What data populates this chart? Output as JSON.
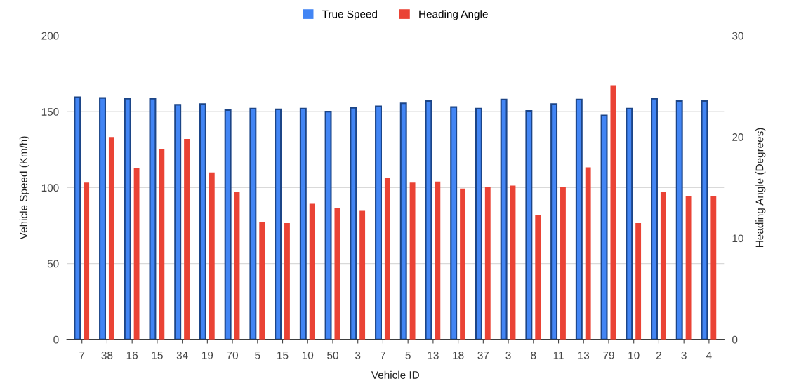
{
  "chart_data": {
    "type": "bar",
    "xlabel": "Vehicle ID",
    "ylabel": "Vehicle Speed (Km/h)",
    "y2label": "Heading Angle (Degrees)",
    "categories": [
      "7",
      "38",
      "16",
      "15",
      "34",
      "19",
      "70",
      "5",
      "15",
      "10",
      "50",
      "3",
      "7",
      "5",
      "13",
      "18",
      "37",
      "3",
      "8",
      "11",
      "13",
      "79",
      "10",
      "2",
      "3",
      "4"
    ],
    "series": [
      {
        "name": "True Speed",
        "color": "#4285f4",
        "values": [
          159.5,
          159,
          158.5,
          158.5,
          154.5,
          155,
          151,
          152,
          151.5,
          152,
          150,
          152.5,
          153.5,
          155.5,
          157,
          153,
          152,
          158,
          150.5,
          155,
          158,
          147.5,
          152,
          158.5,
          157,
          157
        ]
      },
      {
        "name": "Heading Angle",
        "color": "#ea4335",
        "axis": "y2",
        "values": [
          15.5,
          20.0,
          16.9,
          18.8,
          19.8,
          16.5,
          14.6,
          11.6,
          11.5,
          13.4,
          13.0,
          12.7,
          16.0,
          15.5,
          15.6,
          14.9,
          15.1,
          15.2,
          12.3,
          15.1,
          17.0,
          25.1,
          11.5,
          14.6,
          14.2,
          14.2
        ]
      }
    ],
    "ylim": [
      0,
      200
    ],
    "yticks": [
      0,
      50,
      100,
      150,
      200
    ],
    "y2lim": [
      0,
      30
    ],
    "y2ticks": [
      0,
      10,
      20,
      30
    ],
    "grid": "y",
    "legend": "top"
  }
}
